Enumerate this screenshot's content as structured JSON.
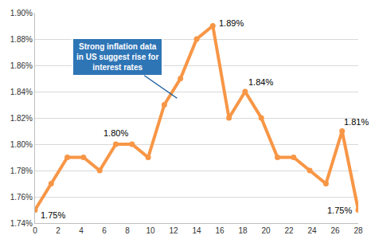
{
  "chart_data": {
    "type": "line",
    "color": "#f79646",
    "marker": "circle",
    "grid": true,
    "x": [
      0,
      1.4,
      2.8,
      4.2,
      5.6,
      7,
      8.4,
      9.8,
      11.2,
      12.6,
      14,
      15.4,
      16.8,
      18.2,
      19.6,
      21,
      22.4,
      23.8,
      25.2,
      26.6,
      28
    ],
    "values": [
      1.75,
      1.77,
      1.79,
      1.79,
      1.78,
      1.8,
      1.8,
      1.79,
      1.83,
      1.85,
      1.88,
      1.89,
      1.82,
      1.84,
      1.82,
      1.79,
      1.79,
      1.78,
      1.77,
      1.81,
      1.75
    ],
    "xlim": [
      0,
      28
    ],
    "xticks": [
      0,
      2,
      4,
      6,
      8,
      10,
      12,
      14,
      16,
      18,
      20,
      22,
      24,
      26,
      28
    ],
    "ylim": [
      1.74,
      1.9
    ],
    "yticks": [
      {
        "value": 1.74,
        "label": "1.74%"
      },
      {
        "value": 1.76,
        "label": "1.76%"
      },
      {
        "value": 1.78,
        "label": "1.78%"
      },
      {
        "value": 1.8,
        "label": "1.80%"
      },
      {
        "value": 1.82,
        "label": "1.82%"
      },
      {
        "value": 1.84,
        "label": "1.84%"
      },
      {
        "value": 1.86,
        "label": "1.86%"
      },
      {
        "value": 1.88,
        "label": "1.88%"
      },
      {
        "value": 1.9,
        "label": "1.90%"
      }
    ],
    "annotations": [
      {
        "text": "1.75%",
        "x": 0,
        "y": 1.75
      },
      {
        "text": "1.80%",
        "x": 7,
        "y": 1.8
      },
      {
        "text": "1.89%",
        "x": 15.4,
        "y": 1.89
      },
      {
        "text": "1.84%",
        "x": 18.2,
        "y": 1.84
      },
      {
        "text": "1.81%",
        "x": 26.6,
        "y": 1.81
      },
      {
        "text": "1.75%",
        "x": 28,
        "y": 1.75
      },
      {
        "text": "Strong inflation data\nin US suggest rise for\ninterest rates",
        "x": 12.3,
        "y": 1.835,
        "callout": true
      }
    ]
  }
}
